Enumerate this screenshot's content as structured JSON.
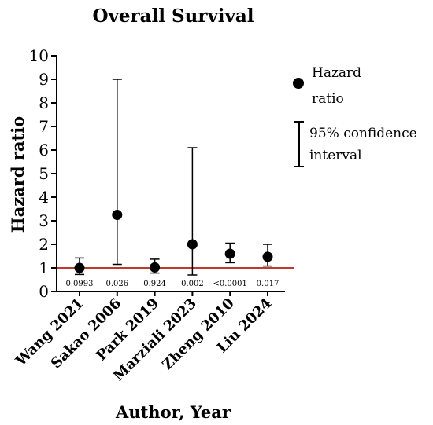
{
  "chart_data": {
    "type": "scatter",
    "title": "Overall Survival",
    "xlabel": "Author, Year",
    "ylabel": "Hazard ratio",
    "ylim": [
      0,
      10
    ],
    "yticks": [
      "0",
      "1",
      "2",
      "3",
      "4",
      "5",
      "6",
      "7",
      "8",
      "9",
      "10"
    ],
    "reference_line": {
      "value": 1,
      "color": "#c0392b"
    },
    "categories": [
      "Wang 2021",
      "Sakao 2006",
      "Park 2019",
      "Marziali 2023",
      "Zheng 2010",
      "Liu 2024"
    ],
    "series": [
      {
        "values": [
          1.0,
          3.25,
          1.02,
          2.0,
          1.6,
          1.47
        ],
        "ci_lower": [
          0.72,
          1.15,
          0.78,
          0.7,
          1.22,
          1.08
        ],
        "ci_upper": [
          1.42,
          9.0,
          1.37,
          6.1,
          2.05,
          2.0
        ]
      }
    ],
    "p_values": [
      "0.0993",
      "0.026",
      "0.924",
      "0.002",
      "<0.0001",
      "0.017"
    ],
    "legend": {
      "placement": "right",
      "point_label_1": "Hazard",
      "point_label_2": "ratio",
      "ci_label_1": "95% confidence",
      "ci_label_2": "interval"
    },
    "grid": false
  }
}
